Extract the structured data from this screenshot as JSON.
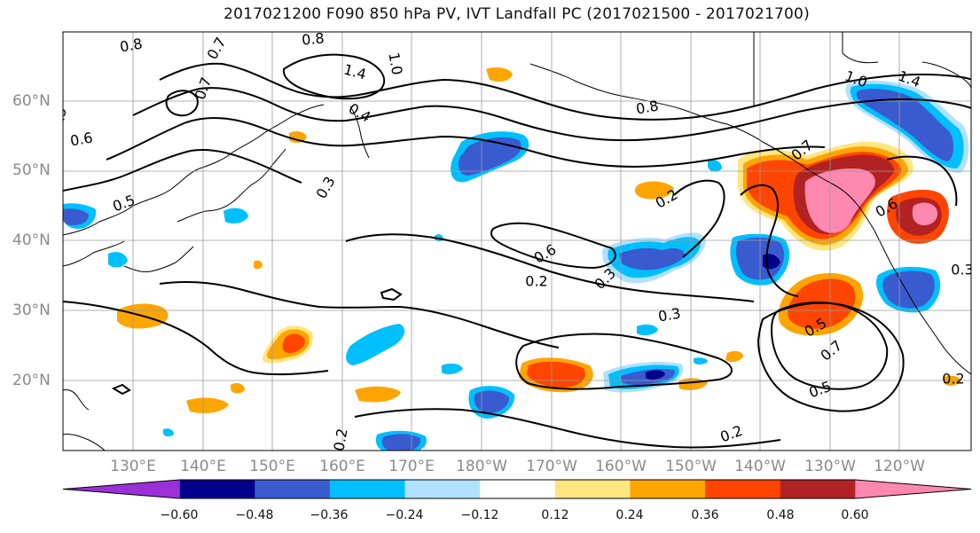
{
  "title": "2017021200 F090 850 hPa PV, IVT Landfall PC (2017021500 - 2017021700)",
  "lat_labels": [
    "60°N",
    "50°N",
    "40°N",
    "30°N",
    "20°N"
  ],
  "lon_labels": [
    "130°E",
    "140°E",
    "150°E",
    "160°E",
    "170°E",
    "180°W",
    "170°W",
    "160°W",
    "150°W",
    "140°W",
    "130°W",
    "120°W"
  ],
  "contour_labels": [
    "0.8",
    "0.7",
    "0.8",
    "1.4",
    "1.0",
    "0.4",
    "1.0",
    "1.4",
    "0.7",
    "0.6",
    "0.5",
    "0.8",
    "0.7",
    "0.5",
    "0.3",
    "0.6",
    "0.2",
    "0.6",
    "0.3",
    "0.2",
    "0.3",
    "0.2",
    "0.5",
    "0.7",
    "0.5",
    "0.2",
    "0.2",
    "0.3"
  ],
  "colorbar": {
    "ticks": [
      "−0.60",
      "−0.48",
      "−0.36",
      "−0.24",
      "−0.12",
      "0.12",
      "0.24",
      "0.36",
      "0.48",
      "0.60"
    ],
    "colors": [
      "#9b30d9",
      "#00008b",
      "#3a5bd0",
      "#00bfff",
      "#b0e2ff",
      "#ffffff",
      "#ffe680",
      "#ffa500",
      "#ff4500",
      "#b22222",
      "#ff88b0"
    ]
  },
  "colors": {
    "pink": "#ff88b0",
    "dark_red": "#b22222",
    "red_orange": "#ff4500",
    "orange": "#ffa500",
    "light_yellow": "#ffe680",
    "light_blue": "#b0e2ff",
    "cyan": "#00bfff",
    "mid_blue": "#3a5bd0",
    "navy": "#00008b",
    "purple": "#9b30d9",
    "grid": "#9a9a9a",
    "contour": "#000000"
  }
}
